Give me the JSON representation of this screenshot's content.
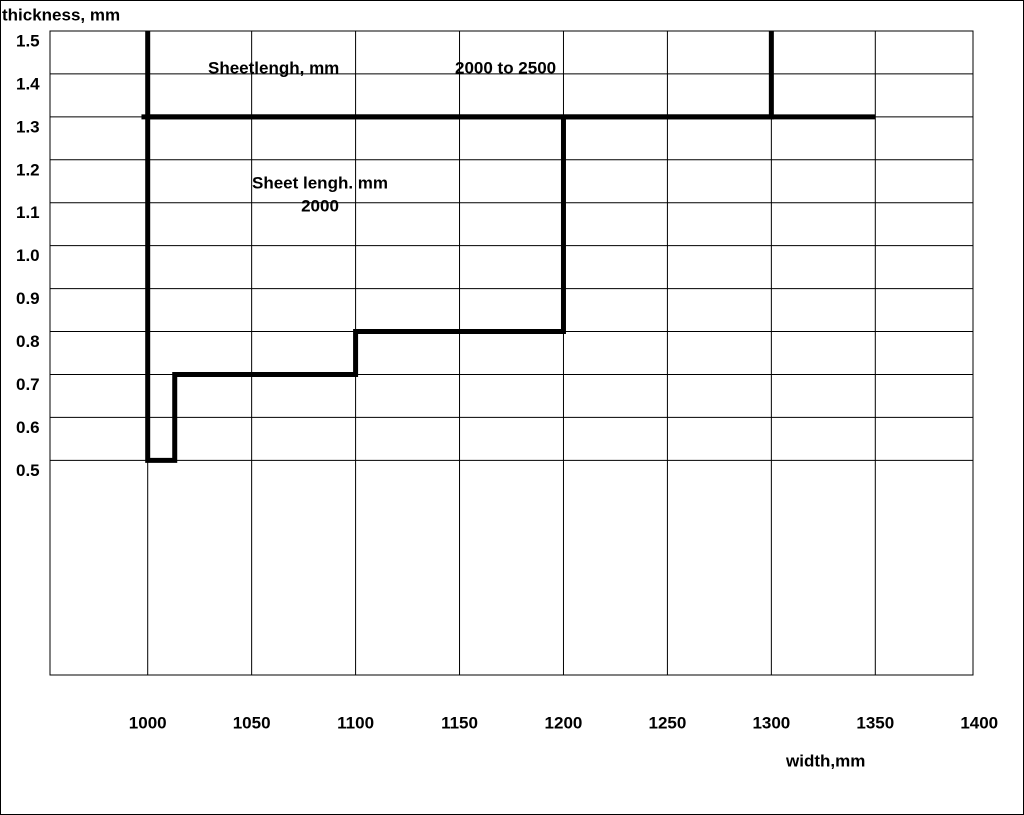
{
  "chart_data": {
    "type": "line",
    "y_label": "thickness, mm",
    "x_label": "width,mm",
    "annotations": [
      "Sheetlengh, mm",
      "2000 to 2500",
      "Sheet lengh. mm",
      "2000"
    ],
    "series": [
      {
        "color": "#000000",
        "x": [
          1000,
          1000,
          1013,
          1013,
          1100,
          1100,
          1200,
          1200
        ],
        "values": [
          1.3,
          0.5,
          0.5,
          0.7,
          0.7,
          0.8,
          0.8,
          1.3
        ]
      },
      {
        "color": "#000000",
        "x": [
          1000,
          1000,
          1300,
          1300
        ],
        "values": [
          1.5,
          1.3,
          1.3,
          1.5
        ]
      },
      {
        "color": "#000000",
        "x": [
          997,
          1350
        ],
        "values": [
          1.3,
          1.3
        ]
      }
    ],
    "xlim": [
      953,
      1397
    ],
    "ylim": [
      0,
      1.5
    ],
    "xticks": [
      1000,
      1050,
      1100,
      1150,
      1200,
      1250,
      1300,
      1350,
      1400
    ],
    "yticks": [
      {
        "value": 0.5,
        "label": "0.5"
      },
      0.6,
      0.7,
      0.8,
      0.9,
      {
        "value": 1,
        "label": "1.0"
      },
      1.1,
      1.2,
      1.3,
      1.4,
      1.5
    ],
    "grid": true
  }
}
